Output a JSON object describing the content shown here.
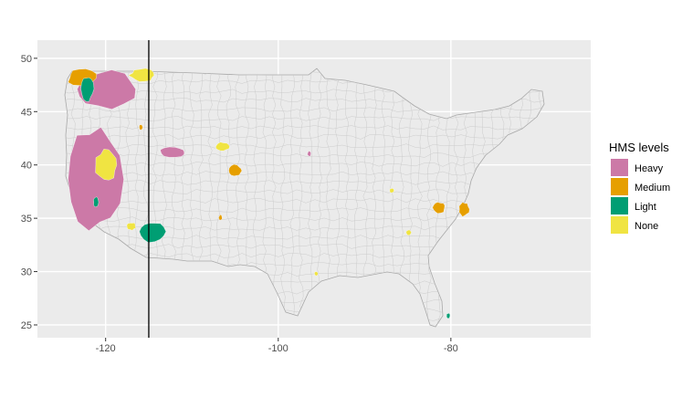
{
  "chart_data": {
    "type": "map",
    "title": "",
    "xlabel": "",
    "ylabel": "",
    "xlim": [
      -127.9,
      -63.8
    ],
    "ylim": [
      23.8,
      51.7
    ],
    "x_ticks": [
      -120,
      -100,
      -80
    ],
    "x_tick_labels": [
      "-120",
      "-100",
      "-80"
    ],
    "y_ticks": [
      25,
      30,
      35,
      40,
      45,
      50
    ],
    "y_tick_labels": [
      "25",
      "30",
      "35",
      "40",
      "45",
      "50"
    ],
    "grid": true,
    "reference_line": {
      "orientation": "vertical",
      "x": -115.0,
      "color": "#000000"
    },
    "legend": {
      "title": "HMS levels",
      "placement": "right",
      "entries": [
        {
          "label": "Heavy",
          "color": "#CC79A7"
        },
        {
          "label": "Medium",
          "color": "#E69F00"
        },
        {
          "label": "Light",
          "color": "#009E73"
        },
        {
          "label": "None",
          "color": "#F0E442"
        }
      ]
    },
    "colors": {
      "panel_background": "#EBEBEB",
      "grid_major": "#FFFFFF",
      "county_fill": "#EBEBEB",
      "county_border": "#C8C8C8"
    },
    "highlighted_regions": [
      {
        "level": "Heavy",
        "lon": [
          -123.8,
          -116.5
        ],
        "lat": [
          45.3,
          48.9
        ]
      },
      {
        "level": "Heavy",
        "lon": [
          -124.3,
          -118.2
        ],
        "lat": [
          33.8,
          43.5
        ]
      },
      {
        "level": "Heavy",
        "lon": [
          -113.8,
          -110.7
        ],
        "lat": [
          40.7,
          41.7
        ]
      },
      {
        "level": "Heavy",
        "lon": [
          -96.6,
          -96.2
        ],
        "lat": [
          40.8,
          41.3
        ]
      },
      {
        "level": "Medium",
        "lon": [
          -124.4,
          -121.0
        ],
        "lat": [
          47.3,
          49.0
        ]
      },
      {
        "level": "Medium",
        "lon": [
          -105.7,
          -104.2
        ],
        "lat": [
          38.9,
          40.0
        ]
      },
      {
        "level": "Medium",
        "lon": [
          -106.9,
          -106.5
        ],
        "lat": [
          34.8,
          35.3
        ]
      },
      {
        "level": "Medium",
        "lon": [
          -82.1,
          -80.6
        ],
        "lat": [
          35.5,
          36.5
        ]
      },
      {
        "level": "Medium",
        "lon": [
          -79.1,
          -77.9
        ],
        "lat": [
          35.2,
          36.5
        ]
      },
      {
        "level": "Medium",
        "lon": [
          -116.1,
          -115.7
        ],
        "lat": [
          43.3,
          43.8
        ]
      },
      {
        "level": "Light",
        "lon": [
          -122.8,
          -121.4
        ],
        "lat": [
          46.0,
          48.3
        ]
      },
      {
        "level": "Light",
        "lon": [
          -116.2,
          -113.1
        ],
        "lat": [
          32.8,
          34.7
        ]
      },
      {
        "level": "Light",
        "lon": [
          -121.4,
          -120.8
        ],
        "lat": [
          36.0,
          37.0
        ]
      },
      {
        "level": "Light",
        "lon": [
          -80.5,
          -80.1
        ],
        "lat": [
          25.6,
          26.1
        ]
      },
      {
        "level": "None",
        "lon": [
          -117.2,
          -114.3
        ],
        "lat": [
          47.8,
          49.0
        ]
      },
      {
        "level": "None",
        "lon": [
          -121.2,
          -118.6
        ],
        "lat": [
          38.5,
          41.5
        ]
      },
      {
        "level": "None",
        "lon": [
          -107.3,
          -105.7
        ],
        "lat": [
          41.3,
          42.1
        ]
      },
      {
        "level": "None",
        "lon": [
          -117.6,
          -116.5
        ],
        "lat": [
          33.9,
          34.6
        ]
      },
      {
        "level": "None",
        "lon": [
          -85.2,
          -84.6
        ],
        "lat": [
          33.4,
          33.9
        ]
      },
      {
        "level": "None",
        "lon": [
          -87.1,
          -86.6
        ],
        "lat": [
          37.4,
          37.8
        ]
      },
      {
        "level": "None",
        "lon": [
          -95.8,
          -95.4
        ],
        "lat": [
          29.6,
          30.0
        ]
      }
    ]
  }
}
